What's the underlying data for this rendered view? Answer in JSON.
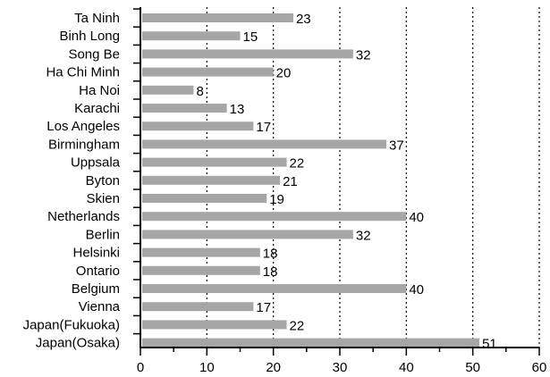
{
  "chart_data": {
    "type": "bar",
    "orientation": "horizontal",
    "categories": [
      "Ta Ninh",
      "Binh Long",
      "Song Be",
      "Ha Chi Minh",
      "Ha Noi",
      "Karachi",
      "Los Angeles",
      "Birmingham",
      "Uppsala",
      "Byton",
      "Skien",
      "Netherlands",
      "Berlin",
      "Helsinki",
      "Ontario",
      "Belgium",
      "Vienna",
      "Japan(Fukuoka)",
      "Japan(Osaka)"
    ],
    "values": [
      23,
      15,
      32,
      20,
      8,
      13,
      17,
      37,
      22,
      21,
      19,
      40,
      32,
      18,
      18,
      40,
      17,
      22,
      51
    ],
    "data_labels": [
      "23",
      "15",
      "32",
      "20",
      "8",
      "13",
      "17",
      "37",
      "22",
      "21",
      "19",
      "40",
      "32",
      "18",
      "18",
      "40",
      "17",
      "22",
      "51"
    ],
    "muted_labels": [
      4
    ],
    "xlim": [
      0,
      60
    ],
    "xticks": [
      "0",
      "10",
      "20",
      "30",
      "40",
      "50",
      "60"
    ],
    "title": "",
    "xlabel": "",
    "ylabel": "",
    "grid": "vertical dotted",
    "colors": {
      "bar": "#a6a6a6",
      "label": "#000000",
      "muted_label": "#9a9a9a",
      "grid": "#000000",
      "axis": "#000000"
    }
  }
}
